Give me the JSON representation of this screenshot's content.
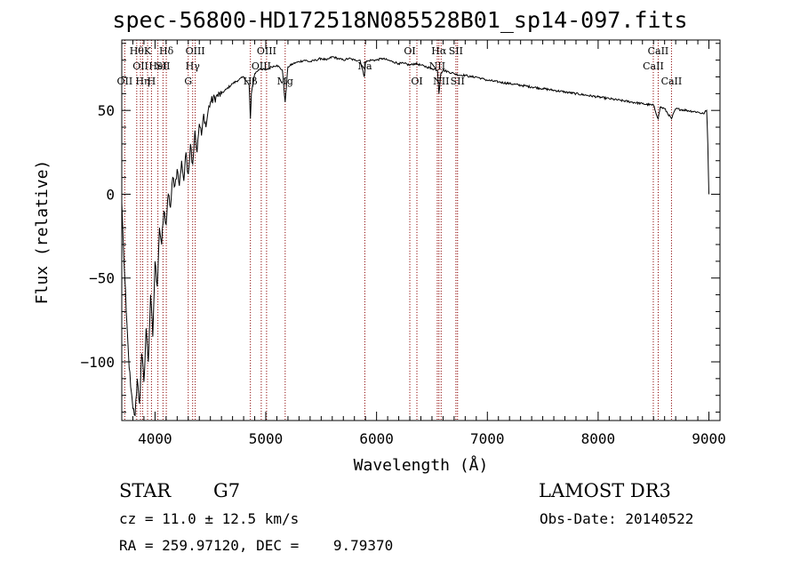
{
  "chart_data": {
    "type": "line",
    "title": "spec-56800-HD172518N085528B01_sp14-097.fits",
    "xlabel": "Wavelength (Å)",
    "ylabel": "Flux (relative)",
    "xlim": [
      3700,
      9100
    ],
    "ylim": [
      -135,
      92
    ],
    "xticks": [
      4000,
      5000,
      6000,
      7000,
      8000,
      9000
    ],
    "yticks": [
      -100,
      -50,
      0,
      50
    ],
    "grid": false,
    "series": [
      {
        "x": [
          3700,
          3720,
          3740,
          3760,
          3780,
          3800,
          3820,
          3840,
          3860,
          3880,
          3900,
          3920,
          3940,
          3960,
          3980,
          4000,
          4020,
          4040,
          4060,
          4080,
          4100,
          4120,
          4140,
          4160,
          4180,
          4200,
          4220,
          4240,
          4260,
          4280,
          4300,
          4320,
          4340,
          4360,
          4380,
          4400,
          4420,
          4440,
          4460,
          4480,
          4500,
          4550,
          4600,
          4650,
          4700,
          4750,
          4800,
          4850,
          4861,
          4870,
          4900,
          4950,
          5000,
          5050,
          5100,
          5150,
          5175,
          5190,
          5200,
          5250,
          5300,
          5350,
          5400,
          5450,
          5500,
          5550,
          5600,
          5650,
          5700,
          5750,
          5800,
          5850,
          5890,
          5900,
          5950,
          6000,
          6050,
          6100,
          6150,
          6200,
          6250,
          6300,
          6350,
          6400,
          6450,
          6500,
          6550,
          6563,
          6580,
          6600,
          6650,
          6700,
          6750,
          6800,
          6850,
          6900,
          6950,
          7000,
          7100,
          7200,
          7300,
          7400,
          7500,
          7600,
          7700,
          7800,
          7900,
          8000,
          8100,
          8200,
          8300,
          8400,
          8500,
          8542,
          8560,
          8600,
          8662,
          8700,
          8800,
          8900,
          8950,
          8980,
          8990,
          9000
        ],
        "values": [
          -5,
          -40,
          -70,
          -95,
          -115,
          -128,
          -132,
          -110,
          -125,
          -95,
          -112,
          -80,
          -100,
          -60,
          -85,
          -40,
          -55,
          -20,
          -30,
          -10,
          -18,
          0,
          -8,
          10,
          5,
          15,
          5,
          20,
          8,
          25,
          12,
          30,
          18,
          38,
          25,
          42,
          35,
          48,
          40,
          50,
          55,
          58,
          60,
          63,
          66,
          68,
          70,
          65,
          45,
          60,
          72,
          75,
          74,
          76,
          77,
          74,
          55,
          68,
          76,
          78,
          79,
          80,
          79,
          80,
          81,
          80,
          82,
          81,
          80,
          81,
          80,
          80,
          70,
          79,
          80,
          80,
          81,
          80,
          79,
          78,
          78,
          77,
          78,
          77,
          76,
          75,
          74,
          60,
          72,
          74,
          73,
          72,
          71,
          71,
          70,
          70,
          69,
          68,
          67,
          66,
          65,
          64,
          63,
          62,
          61,
          60,
          59,
          58,
          57,
          56,
          55,
          54,
          53,
          45,
          52,
          51,
          45,
          51,
          50,
          49,
          48,
          50,
          30,
          0
        ]
      }
    ],
    "lines": [
      {
        "x": 3727,
        "label": "OII",
        "row": 2
      },
      {
        "x": 3835,
        "label": "Hθ",
        "row": 0
      },
      {
        "x": 3869,
        "label": "OII",
        "row": 1
      },
      {
        "x": 3889,
        "label": "Hη",
        "row": 2
      },
      {
        "x": 3933,
        "label": "K",
        "row": 0
      },
      {
        "x": 3968,
        "label": "H",
        "row": 2
      },
      {
        "x": 4026,
        "label": "HeI",
        "row": 1
      },
      {
        "x": 4072,
        "label": "SII",
        "row": 1
      },
      {
        "x": 4102,
        "label": "Hδ",
        "row": 0
      },
      {
        "x": 4300,
        "label": "G",
        "row": 2
      },
      {
        "x": 4340,
        "label": "Hγ",
        "row": 1
      },
      {
        "x": 4363,
        "label": "OIII",
        "row": 0
      },
      {
        "x": 4861,
        "label": "Hβ",
        "row": 2
      },
      {
        "x": 4959,
        "label": "OIII",
        "row": 1
      },
      {
        "x": 5007,
        "label": "OIII",
        "row": 0
      },
      {
        "x": 5175,
        "label": "Mg",
        "row": 2
      },
      {
        "x": 5894,
        "label": "Na",
        "row": 1
      },
      {
        "x": 6300,
        "label": "OI",
        "row": 0
      },
      {
        "x": 6364,
        "label": "OI",
        "row": 2
      },
      {
        "x": 6548,
        "label": "NII",
        "row": 1
      },
      {
        "x": 6563,
        "label": "Hα",
        "row": 0
      },
      {
        "x": 6583,
        "label": "NII",
        "row": 2
      },
      {
        "x": 6716,
        "label": "SII",
        "row": 0
      },
      {
        "x": 6731,
        "label": "SII",
        "row": 2
      },
      {
        "x": 8498,
        "label": "CaII",
        "row": 1
      },
      {
        "x": 8542,
        "label": "CaII",
        "row": 0
      },
      {
        "x": 8662,
        "label": "CaII",
        "row": 2
      }
    ]
  },
  "info": {
    "class": "STAR",
    "subclass": "G7",
    "survey": "LAMOST DR3",
    "cz": "cz = 11.0 ± 12.5 km/s",
    "obsdate": "Obs-Date: 20140522",
    "radec": "RA = 259.97120, DEC =    9.79370"
  }
}
